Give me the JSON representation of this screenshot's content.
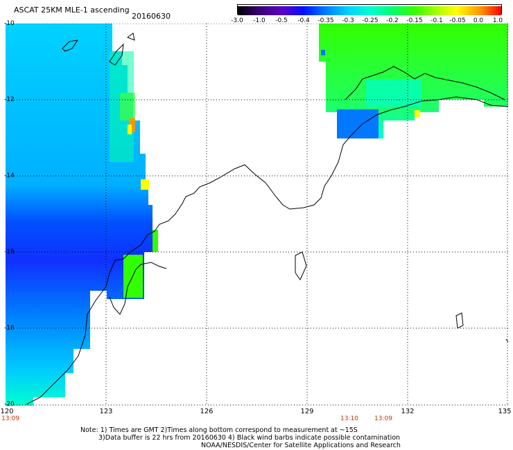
{
  "header": {
    "title": "ASCAT 25KM MLE-1 ascending",
    "date": "20160630"
  },
  "colorbar": {
    "labels": [
      "-3.0",
      "-1.0",
      "-0.5",
      "-0.4",
      "-0.35",
      "-0.3",
      "-0.25",
      "-0.2",
      "-0.15",
      "-0.1",
      "-0.05",
      "0.0",
      "1.0"
    ],
    "colors": [
      "#000000",
      "#3a0070",
      "#5a00c8",
      "#0010ff",
      "#0078ff",
      "#00d2ff",
      "#00ffd2",
      "#00ff78",
      "#32ff00",
      "#a0ff00",
      "#ffff00",
      "#ff9600",
      "#ff0000"
    ]
  },
  "axes": {
    "x_ticks": [
      "120",
      "123",
      "126",
      "129",
      "132",
      "135"
    ],
    "y_ticks": [
      "-10",
      "-12",
      "-14",
      "-16",
      "-18",
      "-20"
    ],
    "times": [
      "13:09",
      "13:10",
      "13:09"
    ]
  },
  "notes": {
    "line1": "Note: 1) Times are GMT 2)Times along bottom correspond to measurement at ~15S",
    "line2": "3)Data buffer is 22 hrs from 20160630 4) Black wind barbs indicate possible contamination",
    "line3": "NOAA/NESDIS/Center for Satellite Applications and Research"
  }
}
